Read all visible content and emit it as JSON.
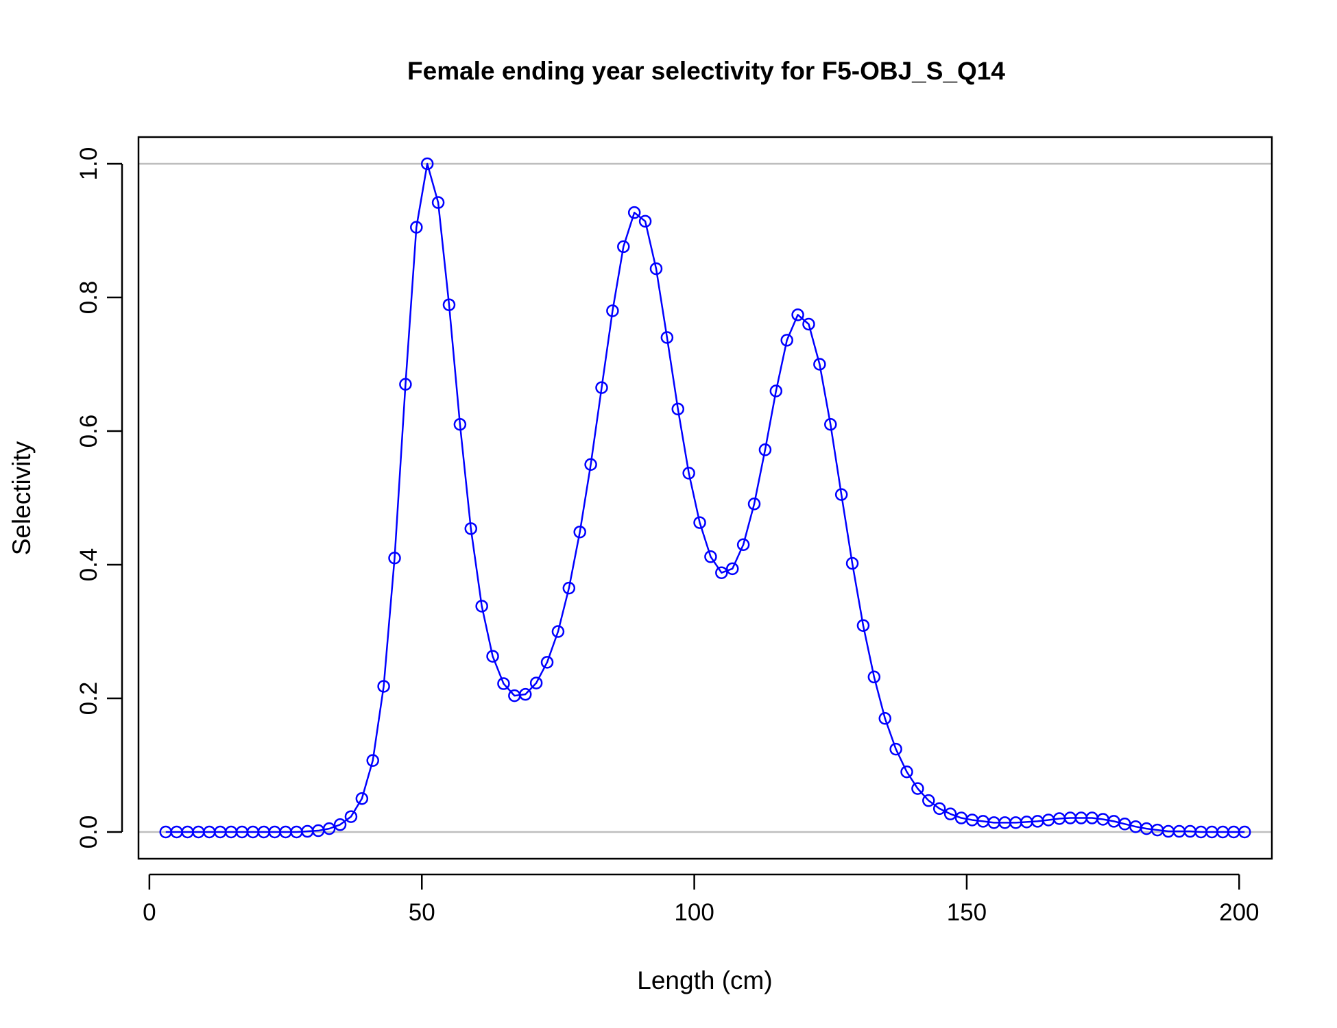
{
  "chart_data": {
    "type": "line",
    "title": "Female ending year selectivity for F5-OBJ_S_Q14",
    "xlabel": "Length (cm)",
    "ylabel": "Selectivity",
    "xlim": [
      -2.0,
      206.0
    ],
    "ylim": [
      -0.04,
      1.04
    ],
    "x_ticks": [
      0,
      50,
      100,
      150,
      200
    ],
    "x_tick_labels": [
      "0",
      "50",
      "100",
      "150",
      "200"
    ],
    "y_ticks": [
      0.0,
      0.2,
      0.4,
      0.6,
      0.8,
      1.0
    ],
    "y_tick_labels": [
      "0.0",
      "0.2",
      "0.4",
      "0.6",
      "0.8",
      "1.0"
    ],
    "reference_lines_y": [
      0,
      1
    ],
    "reference_line_color": "#bebebe",
    "series_color": "#0000ff",
    "markers": "open-circle",
    "series": [
      {
        "x": [
          3,
          5,
          7,
          9,
          11,
          13,
          15,
          17,
          19,
          21,
          23,
          25,
          27,
          29,
          31,
          33,
          35,
          37,
          39,
          41,
          43,
          45,
          47,
          49,
          51,
          53,
          55,
          57,
          59,
          61,
          63,
          65,
          67,
          69,
          71,
          73,
          75,
          77,
          79,
          81,
          83,
          85,
          87,
          89,
          91,
          93,
          95,
          97,
          99,
          101,
          103,
          105,
          107,
          109,
          111,
          113,
          115,
          117,
          119,
          121,
          123,
          125,
          127,
          129,
          131,
          133,
          135,
          137,
          139,
          141,
          143,
          145,
          147,
          149,
          151,
          153,
          155,
          157,
          159,
          161,
          163,
          165,
          167,
          169,
          171,
          173,
          175,
          177,
          179,
          181,
          183,
          185,
          187,
          189,
          191,
          193,
          195,
          197,
          199,
          201
        ],
        "values": [
          0,
          0,
          0,
          0,
          0,
          0,
          0,
          0,
          0,
          0,
          0,
          0,
          0,
          0.001,
          0.002,
          0.005,
          0.011,
          0.023,
          0.05,
          0.107,
          0.218,
          0.41,
          0.67,
          0.905,
          1.0,
          0.942,
          0.789,
          0.61,
          0.454,
          0.338,
          0.263,
          0.222,
          0.204,
          0.206,
          0.223,
          0.254,
          0.3,
          0.365,
          0.449,
          0.55,
          0.665,
          0.78,
          0.876,
          0.927,
          0.914,
          0.843,
          0.74,
          0.633,
          0.537,
          0.463,
          0.412,
          0.388,
          0.394,
          0.43,
          0.491,
          0.572,
          0.66,
          0.736,
          0.774,
          0.76,
          0.7,
          0.61,
          0.505,
          0.402,
          0.309,
          0.232,
          0.17,
          0.124,
          0.09,
          0.065,
          0.047,
          0.035,
          0.027,
          0.021,
          0.018,
          0.016,
          0.014,
          0.014,
          0.014,
          0.015,
          0.016,
          0.018,
          0.02,
          0.021,
          0.021,
          0.021,
          0.019,
          0.016,
          0.012,
          0.008,
          0.005,
          0.003,
          0.001,
          0.001,
          0.001,
          0,
          0,
          0,
          0,
          0
        ]
      }
    ]
  }
}
